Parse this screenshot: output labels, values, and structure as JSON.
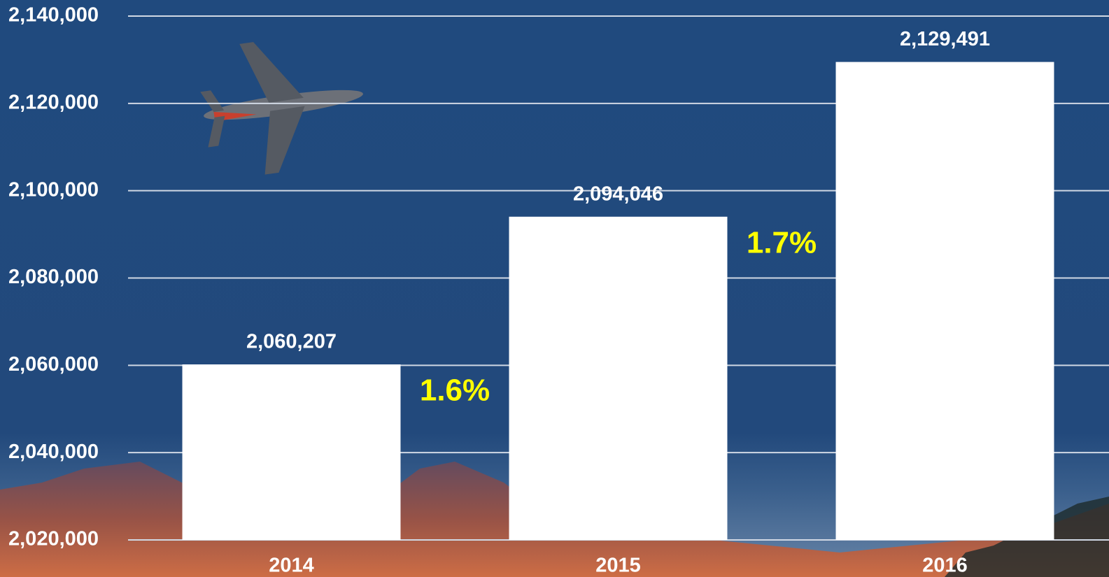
{
  "chart_data": {
    "type": "bar",
    "categories": [
      "2014",
      "2015",
      "2016"
    ],
    "values": [
      2060207,
      2094046,
      2129491
    ],
    "value_labels": [
      "2,060,207",
      "2,094,046",
      "2,129,491"
    ],
    "color": "#ffffff",
    "ylim": [
      2020000,
      2140000
    ],
    "yticks": [
      {
        "value": 2020000,
        "label": "2,020,000"
      },
      {
        "value": 2040000,
        "label": "2,040,000"
      },
      {
        "value": 2060000,
        "label": "2,060,000"
      },
      {
        "value": 2080000,
        "label": "2,080,000"
      },
      {
        "value": 2100000,
        "label": "2,100,000"
      },
      {
        "value": 2120000,
        "label": "2,120,000"
      },
      {
        "value": 2140000,
        "label": "2,140,000"
      }
    ],
    "grid": true,
    "annotations": [
      "1.6%",
      "1.7%"
    ]
  }
}
